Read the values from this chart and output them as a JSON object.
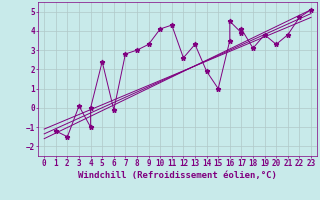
{
  "title": "",
  "xlabel": "Windchill (Refroidissement éolien,°C)",
  "ylabel": "",
  "bg_color": "#c8eaea",
  "line_color": "#800080",
  "grid_color": "#b0c8c8",
  "xlim": [
    -0.5,
    23.5
  ],
  "ylim": [
    -2.5,
    5.5
  ],
  "yticks": [
    -2,
    -1,
    0,
    1,
    2,
    3,
    4,
    5
  ],
  "xticks": [
    0,
    1,
    2,
    3,
    4,
    5,
    6,
    7,
    8,
    9,
    10,
    11,
    12,
    13,
    14,
    15,
    16,
    17,
    18,
    19,
    20,
    21,
    22,
    23
  ],
  "scatter_x": [
    1,
    2,
    3,
    4,
    4,
    5,
    6,
    7,
    8,
    9,
    10,
    11,
    12,
    13,
    14,
    15,
    16,
    16,
    17,
    17,
    18,
    19,
    20,
    21,
    22,
    23
  ],
  "scatter_y": [
    -1.2,
    -1.5,
    0.1,
    -1.0,
    0.0,
    2.4,
    -0.1,
    2.8,
    3.0,
    3.3,
    4.1,
    4.3,
    2.6,
    3.3,
    1.9,
    1.0,
    3.5,
    4.5,
    3.9,
    4.1,
    3.1,
    3.8,
    3.3,
    3.8,
    4.7,
    5.1
  ],
  "line1_x": [
    0,
    23
  ],
  "line1_y": [
    -1.6,
    5.1
  ],
  "line2_x": [
    0,
    23
  ],
  "line2_y": [
    -1.1,
    4.7
  ],
  "line3_x": [
    0,
    23
  ],
  "line3_y": [
    -1.35,
    4.9
  ],
  "marker_size": 3.5,
  "font_size": 6.5,
  "tick_font_size": 5.5
}
